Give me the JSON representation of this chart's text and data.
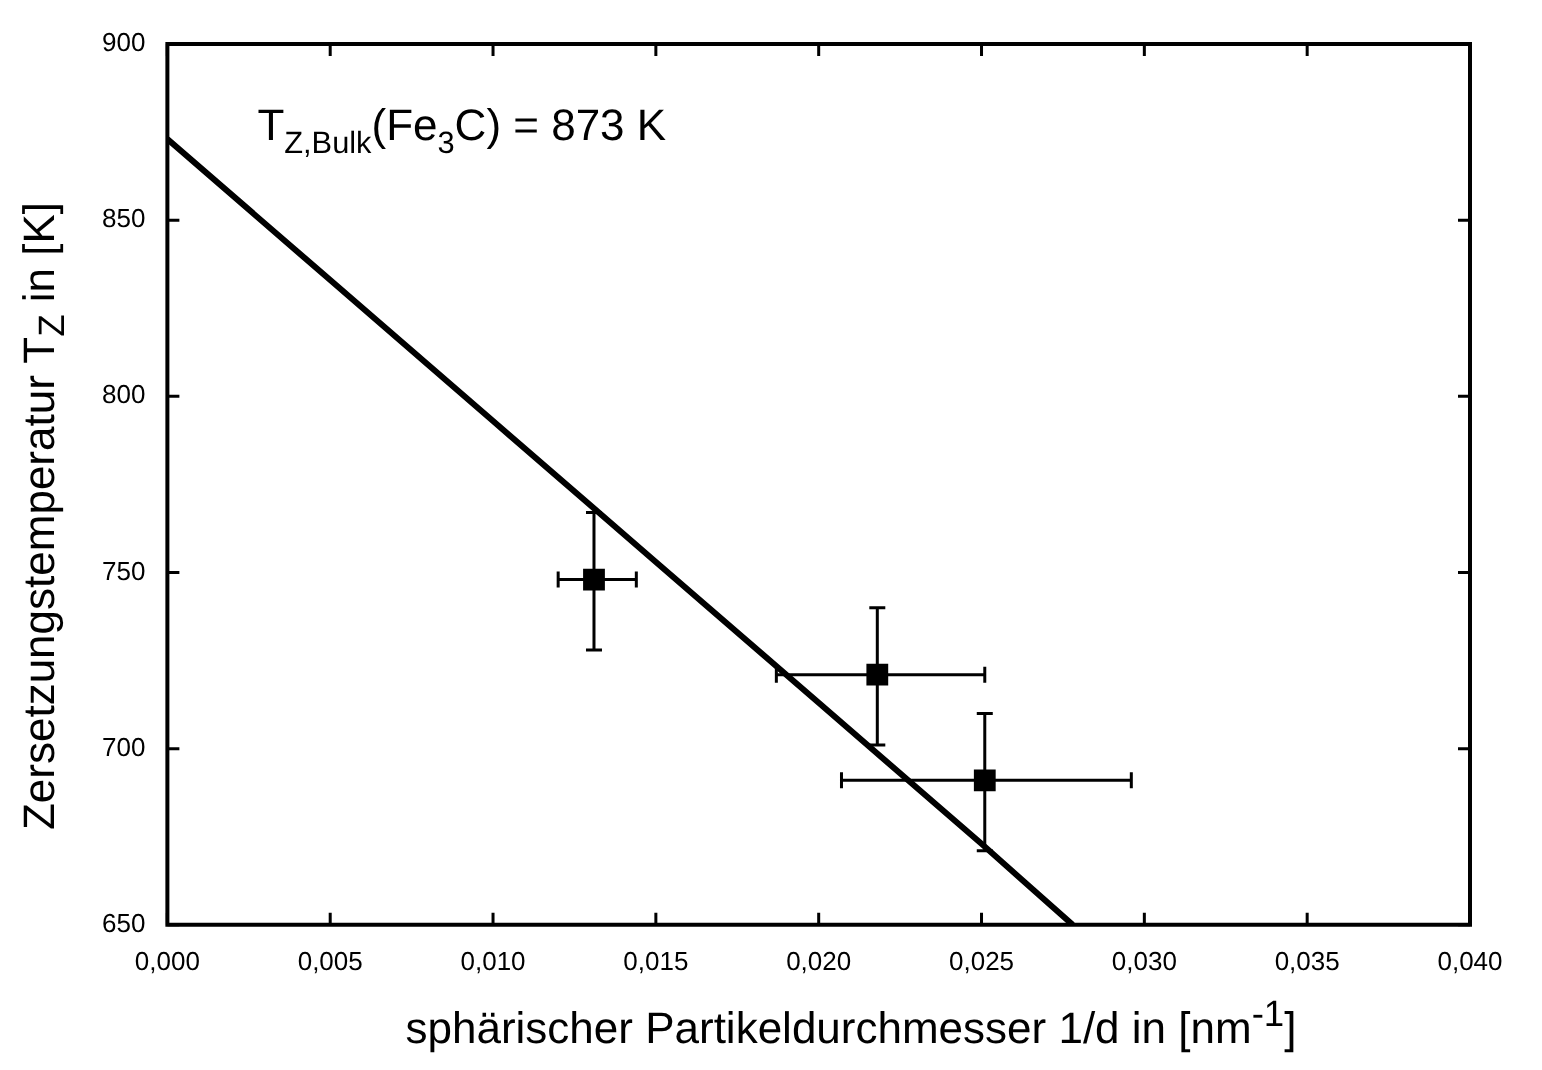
{
  "chart_data": {
    "type": "scatter",
    "xlabel": "sphärischer Partikeldurchmesser 1/d in [nm$^{-1}$]",
    "ylabel": "Zersetzungstemperatur T$_{Z}$ in [K]",
    "annotations": [
      "T$_{Z,Bulk}$(Fe$_{3}$C) = 873 K"
    ],
    "series": [
      {
        "type": "line",
        "color": "#000000",
        "x": [
          0,
          0.005,
          0.01,
          0.015,
          0.02,
          0.025,
          0.0278
        ],
        "values": [
          873,
          833,
          793,
          753,
          713,
          673,
          650
        ]
      },
      {
        "color": "#000000",
        "marker": "square",
        "x": [
          0.0131,
          0.0218,
          0.0251
        ],
        "values": [
          748,
          721,
          691
        ],
        "errors": [
          [
            728,
            767
          ],
          [
            701,
            740
          ],
          [
            671,
            710
          ]
        ],
        "xerrors": [
          [
            0.012,
            0.0144
          ],
          [
            0.0187,
            0.0251
          ],
          [
            0.0207,
            0.0296
          ]
        ]
      }
    ],
    "xlim": [
      0,
      0.04
    ],
    "xticks": [
      {
        "value": 0,
        "label": "0,000"
      },
      {
        "value": 0.005,
        "label": "0,005"
      },
      {
        "value": 0.01,
        "label": "0,010"
      },
      {
        "value": 0.015,
        "label": "0,015"
      },
      {
        "value": 0.02,
        "label": "0,020"
      },
      {
        "value": 0.025,
        "label": "0,025"
      },
      {
        "value": 0.03,
        "label": "0,030"
      },
      {
        "value": 0.035,
        "label": "0,035"
      },
      {
        "value": 0.04,
        "label": "0,040"
      }
    ],
    "ylim": [
      650,
      900
    ],
    "yticks": [
      650,
      700,
      750,
      800,
      850,
      900
    ],
    "grid": false,
    "legend": false
  }
}
